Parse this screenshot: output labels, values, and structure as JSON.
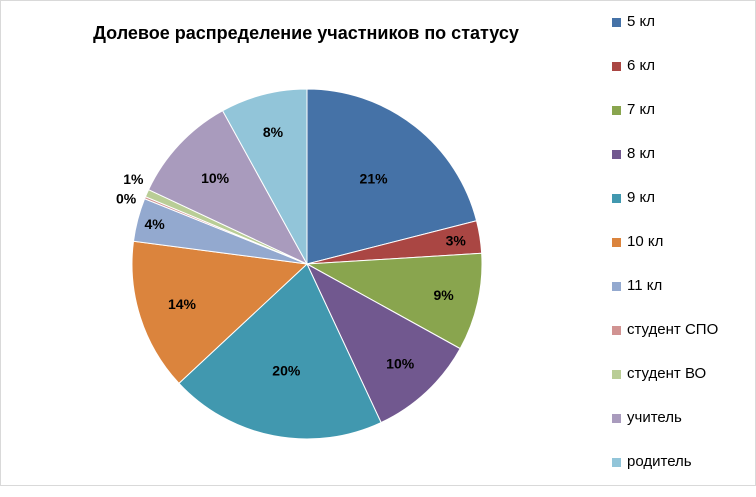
{
  "chart_data": {
    "type": "pie",
    "title": "Долевое распределение участников по статусу",
    "categories": [
      "5 кл",
      "6 кл",
      "7 кл",
      "8 кл",
      "9 кл",
      "10 кл",
      "11 кл",
      "студент СПО",
      "студент ВО",
      "учитель",
      "родитель"
    ],
    "values": [
      21,
      3,
      9,
      10,
      20,
      14,
      4,
      0.2,
      0.7,
      10,
      8
    ],
    "data_labels": [
      "21%",
      "3%",
      "9%",
      "10%",
      "20%",
      "14%",
      "4%",
      "0%",
      "1%",
      "10%",
      "8%"
    ],
    "colors": [
      "#4572A7",
      "#AA4643",
      "#89A54E",
      "#71588F",
      "#4198AF",
      "#DB843D",
      "#93A9CF",
      "#D19392",
      "#B9CD96",
      "#A99BBD",
      "#92C5D9"
    ],
    "legend_position": "right",
    "start_angle": "12 o'clock",
    "direction": "clockwise"
  }
}
